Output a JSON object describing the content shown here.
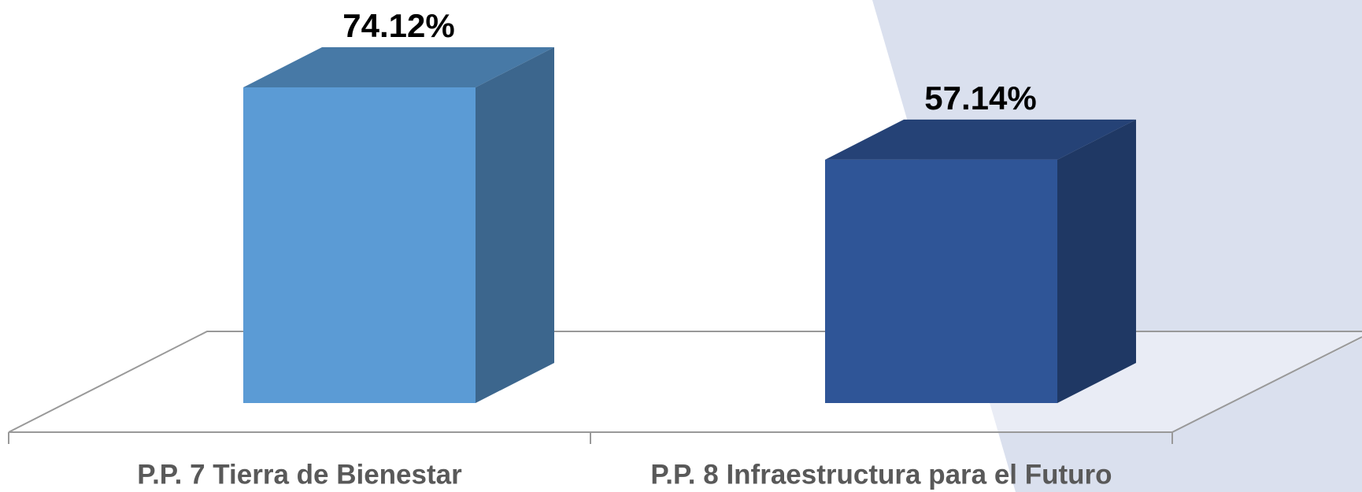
{
  "chart_data": {
    "type": "bar3d",
    "categories": [
      "P.P. 7 Tierra de Bienestar",
      "P.P. 8 Infraestructura para el Futuro"
    ],
    "series": [
      {
        "name": null,
        "colors": [
          "#5b9bd5",
          "#2f5597"
        ],
        "values": [
          74.12,
          57.14
        ],
        "value_labels": [
          "74.12%",
          "57.14%"
        ]
      }
    ]
  }
}
